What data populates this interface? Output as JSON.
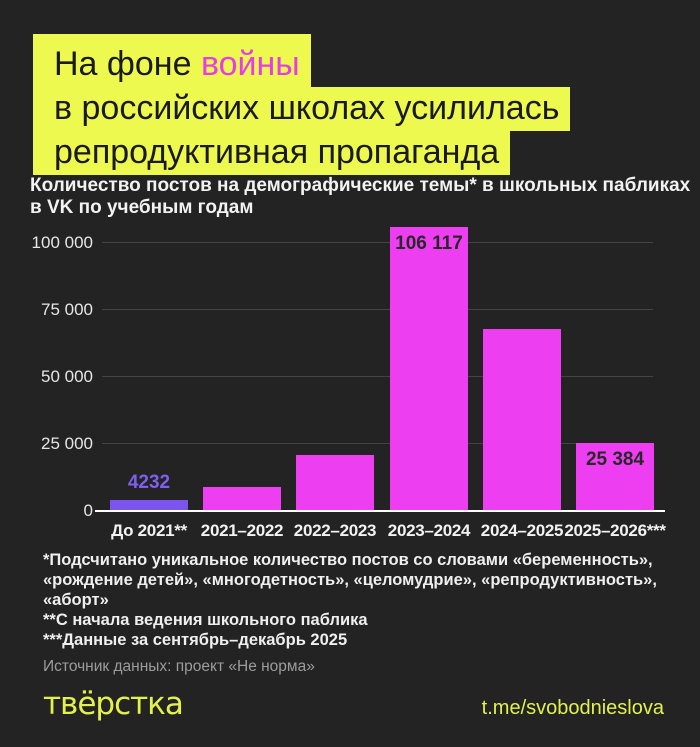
{
  "theme": {
    "bg": "#232323",
    "yellow": "#edf94e",
    "magenta_text": "#e73ce9",
    "bar_magenta": "#ee3ef2",
    "bar_purple": "#7b54ee",
    "grid": "#444444",
    "baseline": "#ffffff",
    "text_light": "#f2f2f2",
    "text_gray": "#9c9c9c",
    "footer_yellow": "#e3f14c"
  },
  "header": {
    "line1_prefix": "На фоне ",
    "line1_highlight": "войны",
    "line2": "в российских школах усилилась",
    "line3": "репродуктивная пропаганда"
  },
  "subtitle": {
    "line1": "Количество постов на демографические темы* в школьных пабликах",
    "line2": "в VK по учебным годам"
  },
  "chart_data": {
    "type": "bar",
    "title": "Количество постов на демографические темы* в школьных пабликах в VK по учебным годам",
    "categories": [
      "До 2021**",
      "2021–2022",
      "2022–2023",
      "2023–2024",
      "2024–2025",
      "2025–2026***"
    ],
    "values": [
      4232,
      9000,
      21000,
      106117,
      68000,
      25384
    ],
    "value_labels": [
      "4232",
      null,
      null,
      "106 117",
      null,
      "25 384"
    ],
    "label_placement": [
      "above",
      null,
      null,
      "inside",
      null,
      "inside"
    ],
    "value_label_colors": [
      "#7f5ef0",
      null,
      null,
      "#282828",
      null,
      "#282828"
    ],
    "bar_colors": [
      "#7b54ee",
      "#ee3ef2",
      "#ee3ef2",
      "#ee3ef2",
      "#ee3ef2",
      "#ee3ef2"
    ],
    "ylim": [
      0,
      110000
    ],
    "yticks": [
      0,
      25000,
      50000,
      75000,
      100000
    ],
    "ytick_labels": [
      "0",
      "25 000",
      "50 000",
      "75 000",
      "100 000"
    ],
    "grid": "horizontal",
    "legend": "none"
  },
  "footnotes": {
    "lines": [
      "*Подсчитано уникальное количество постов со словами «беременность»,",
      "«рождение детей», «многодетность», «целомудрие», «репродуктивность»,",
      "«аборт»",
      "**С начала ведения школьного паблика",
      "***Данные за сентябрь–декабрь 2025"
    ]
  },
  "source": "Источник данных: проект «Не норма»",
  "footer": {
    "logo": "твёрстка",
    "link": "t.me/svobodnieslova"
  }
}
